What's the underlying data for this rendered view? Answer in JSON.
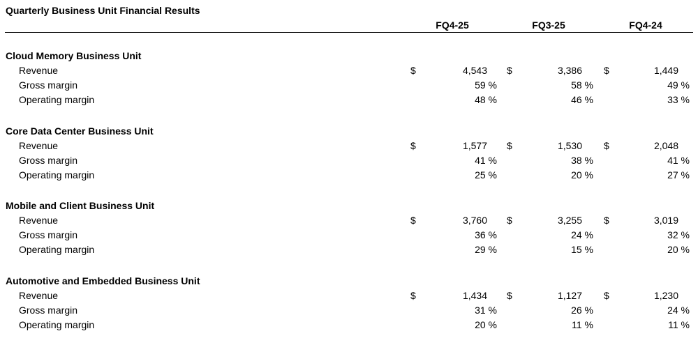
{
  "title": "Quarterly Business Unit Financial Results",
  "columns": [
    "FQ4-25",
    "FQ3-25",
    "FQ4-24"
  ],
  "currency_symbol": "$",
  "sections": [
    {
      "name": "Cloud Memory Business Unit",
      "rows": [
        {
          "label": "Revenue",
          "values": [
            "4,543",
            "3,386",
            "1,449"
          ]
        },
        {
          "label": "Gross margin",
          "values": [
            "59 %",
            "58 %",
            "49 %"
          ]
        },
        {
          "label": "Operating margin",
          "values": [
            "48 %",
            "46 %",
            "33 %"
          ]
        }
      ]
    },
    {
      "name": "Core Data Center Business Unit",
      "rows": [
        {
          "label": "Revenue",
          "values": [
            "1,577",
            "1,530",
            "2,048"
          ]
        },
        {
          "label": "Gross margin",
          "values": [
            "41 %",
            "38 %",
            "41 %"
          ]
        },
        {
          "label": "Operating margin",
          "values": [
            "25 %",
            "20 %",
            "27 %"
          ]
        }
      ]
    },
    {
      "name": "Mobile and Client Business Unit",
      "rows": [
        {
          "label": "Revenue",
          "values": [
            "3,760",
            "3,255",
            "3,019"
          ]
        },
        {
          "label": "Gross margin",
          "values": [
            "36 %",
            "24 %",
            "32 %"
          ]
        },
        {
          "label": "Operating margin",
          "values": [
            "29 %",
            "15 %",
            "20 %"
          ]
        }
      ]
    },
    {
      "name": "Automotive and Embedded Business Unit",
      "rows": [
        {
          "label": "Revenue",
          "values": [
            "1,434",
            "1,127",
            "1,230"
          ]
        },
        {
          "label": "Gross margin",
          "values": [
            "31 %",
            "26 %",
            "24 %"
          ]
        },
        {
          "label": "Operating margin",
          "values": [
            "20 %",
            "11 %",
            "11 %"
          ]
        }
      ]
    }
  ]
}
